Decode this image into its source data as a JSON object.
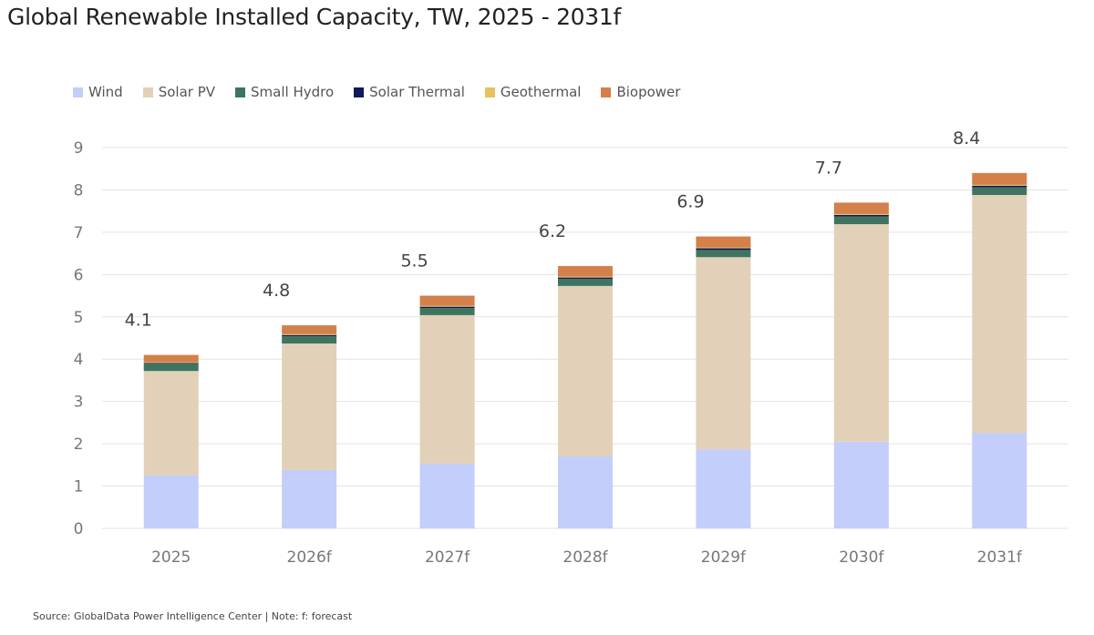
{
  "chart_data": {
    "type": "bar",
    "stacked": true,
    "title": "Global Renewable Installed Capacity, TW, 2025 - 2031f",
    "xlabel": "",
    "ylabel": "",
    "ylim": [
      0,
      9
    ],
    "yticks": [
      0,
      1,
      2,
      3,
      4,
      5,
      6,
      7,
      8,
      9
    ],
    "grid": true,
    "legend_position": "top-left",
    "categories": [
      "2025",
      "2026f",
      "2027f",
      "2028f",
      "2029f",
      "2030f",
      "2031f"
    ],
    "series": [
      {
        "name": "Wind",
        "color": "#c3cefa",
        "values": [
          1.25,
          1.38,
          1.53,
          1.7,
          1.87,
          2.05,
          2.25
        ]
      },
      {
        "name": "Solar PV",
        "color": "#e2d0b9",
        "values": [
          2.47,
          2.99,
          3.51,
          4.03,
          4.54,
          5.14,
          5.63
        ]
      },
      {
        "name": "Small Hydro",
        "color": "#3f7560",
        "values": [
          0.17,
          0.17,
          0.17,
          0.17,
          0.17,
          0.18,
          0.18
        ]
      },
      {
        "name": "Solar Thermal",
        "color": "#0e1a5c",
        "values": [
          0.02,
          0.03,
          0.03,
          0.03,
          0.04,
          0.04,
          0.04
        ]
      },
      {
        "name": "Geothermal",
        "color": "#e8c25c",
        "values": [
          0.02,
          0.02,
          0.02,
          0.02,
          0.02,
          0.02,
          0.02
        ]
      },
      {
        "name": "Biopower",
        "color": "#d3804a",
        "values": [
          0.17,
          0.21,
          0.24,
          0.25,
          0.26,
          0.27,
          0.28
        ]
      }
    ],
    "totals": [
      "4.1",
      "4.8",
      "5.5",
      "6.2",
      "6.9",
      "7.7",
      "8.4"
    ]
  },
  "source": "Source: GlobalData Power Intelligence Center | Note: f: forecast"
}
